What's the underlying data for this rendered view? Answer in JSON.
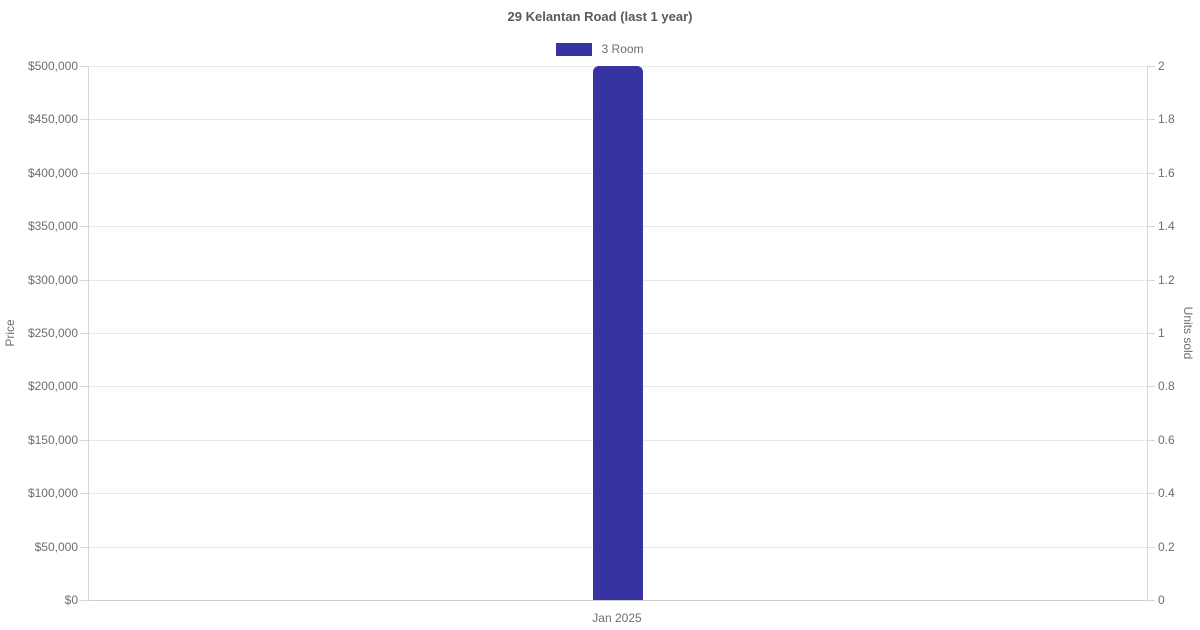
{
  "page": {
    "background": "#ffffff"
  },
  "chart_data": {
    "type": "bar",
    "title": "29 Kelantan Road (last 1 year)",
    "categories": [
      "Jan 2025"
    ],
    "series": [
      {
        "name": "3 Room",
        "color": "#3733a3",
        "axis": "left",
        "values": [
          500000
        ]
      }
    ],
    "legend": {
      "position": "top",
      "items": [
        {
          "label": "3 Room",
          "color": "#3733a3"
        }
      ]
    },
    "left_axis": {
      "label": "Price",
      "min": 0,
      "max": 500000,
      "tick_step": 50000,
      "ticks": [
        "$500,000",
        "$450,000",
        "$400,000",
        "$350,000",
        "$300,000",
        "$250,000",
        "$200,000",
        "$150,000",
        "$100,000",
        "$50,000",
        "$0"
      ]
    },
    "right_axis": {
      "label": "Units sold",
      "min": 0,
      "max": 2,
      "tick_step": 0.2,
      "ticks": [
        "2",
        "1.8",
        "1.6",
        "1.4",
        "1.2",
        "1",
        "0.8",
        "0.6",
        "0.4",
        "0.2",
        "0"
      ]
    },
    "grid": "horizontal-only",
    "colors": {
      "bar": "#3733a3",
      "gridline": "#e9e9e9",
      "axis_line": "#d8d8d8",
      "text": "#6e6e6e",
      "title_text": "#595959"
    }
  }
}
